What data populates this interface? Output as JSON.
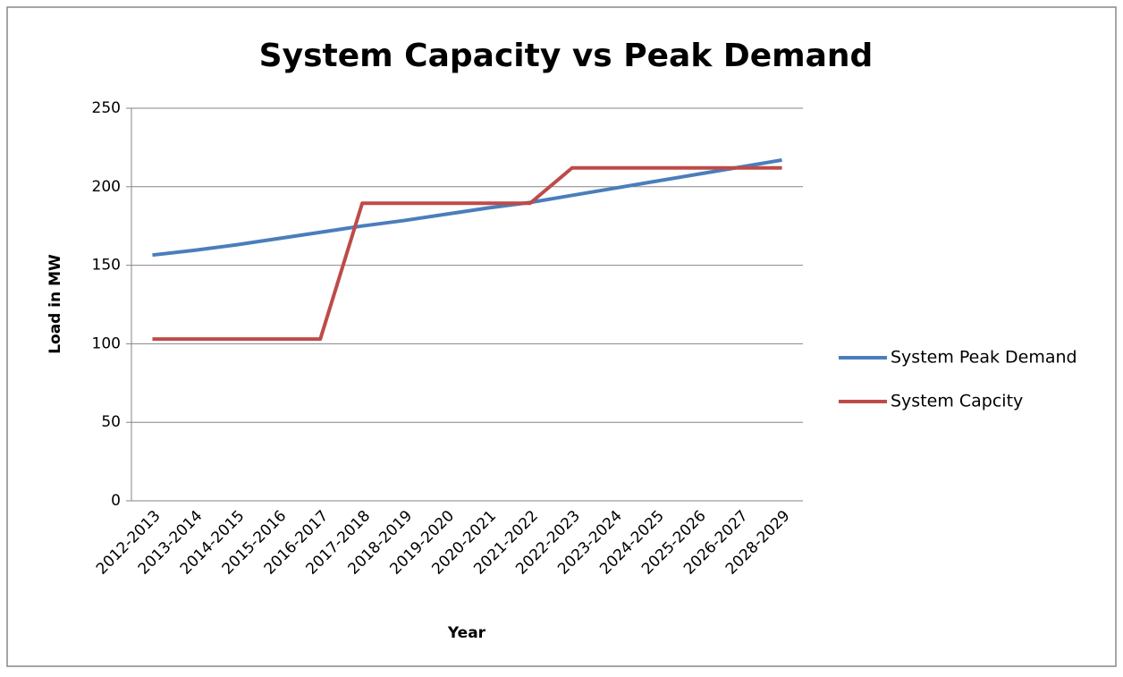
{
  "chart_data": {
    "type": "line",
    "title": "System Capacity vs Peak Demand",
    "x_label": "Year",
    "y_label": "Load in MW",
    "categories": [
      "2012-2013",
      "2013-2014",
      "2014-2015",
      "2015-2016",
      "2016-2017",
      "2017-2018",
      "2018-2019",
      "2019-2020",
      "2020-2021",
      "2021-2022",
      "2022-2023",
      "2023-2024",
      "2024-2025",
      "2025-2026",
      "2026-2027",
      "2028-2029"
    ],
    "series": [
      {
        "name": "System Peak Demand",
        "color": "#4a7ebb",
        "values": [
          156.5,
          159.5,
          163,
          167,
          171,
          175,
          178.5,
          182.5,
          186.5,
          190,
          194.5,
          199,
          203.5,
          208,
          212.5,
          217
        ]
      },
      {
        "name": "System Capcity",
        "color": "#be4b48",
        "values": [
          103,
          103,
          103,
          103,
          103,
          189.5,
          189.5,
          189.5,
          189.5,
          189.5,
          212,
          212,
          212,
          212,
          212,
          212
        ]
      }
    ],
    "ylim": [
      0,
      250
    ],
    "yticks": [
      0,
      50,
      100,
      150,
      200,
      250
    ],
    "grid": true,
    "legend": "right"
  }
}
